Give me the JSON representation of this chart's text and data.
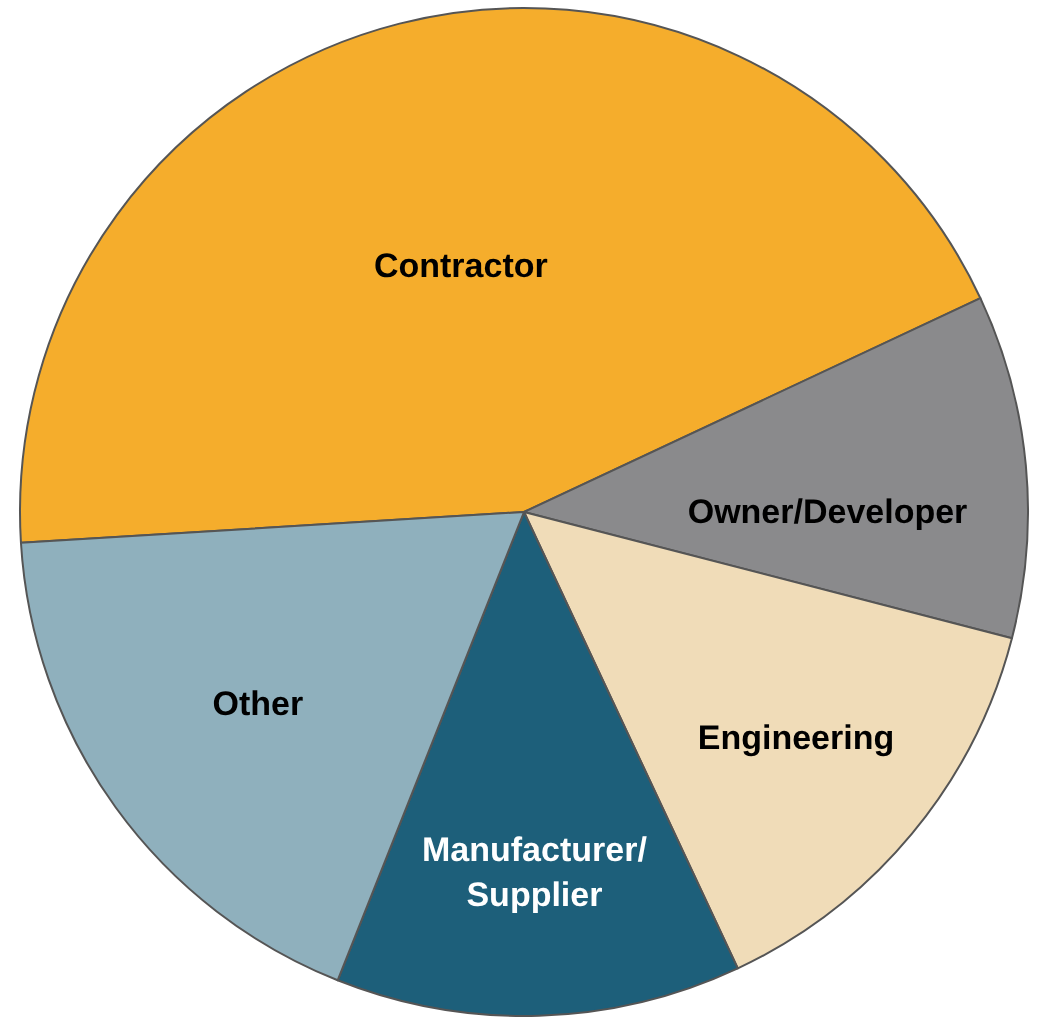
{
  "chart_data": {
    "type": "pie",
    "categories": [
      "Contractor",
      "Owner/Developer",
      "Engineering",
      "Manufacturer/\nSupplier",
      "Other"
    ],
    "values": [
      44,
      11,
      14,
      13,
      18
    ],
    "colors": [
      "#f5ad2c",
      "#8a8a8c",
      "#f0dcb8",
      "#1d5f7a",
      "#8fb0bd"
    ],
    "legend": false
  }
}
